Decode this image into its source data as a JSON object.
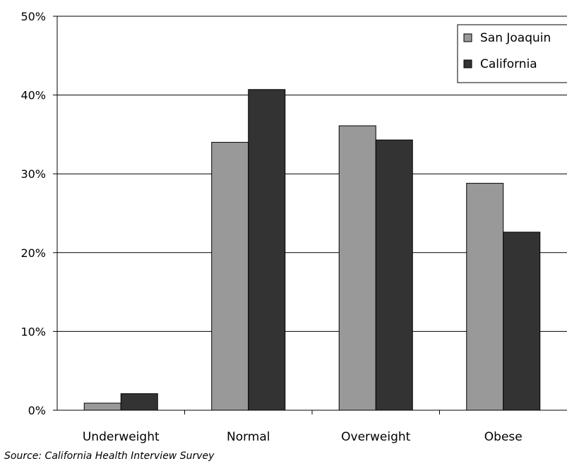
{
  "source_note": "Source: California Health Interview Survey",
  "colors": {
    "san_joaquin": "#999999",
    "california": "#333333",
    "gridline": "#000000"
  },
  "chart_data": {
    "type": "bar",
    "categories": [
      "Underweight",
      "Normal",
      "Overweight",
      "Obese"
    ],
    "series": [
      {
        "name": "San Joaquin",
        "values": [
          0.9,
          34.0,
          36.1,
          28.8
        ]
      },
      {
        "name": "California",
        "values": [
          2.1,
          40.7,
          34.3,
          22.6
        ]
      }
    ],
    "ylim": [
      0,
      50
    ],
    "y_ticks": [
      "0%",
      "10%",
      "20%",
      "30%",
      "40%",
      "50%"
    ],
    "grid": true,
    "legend_position": "top-right"
  }
}
